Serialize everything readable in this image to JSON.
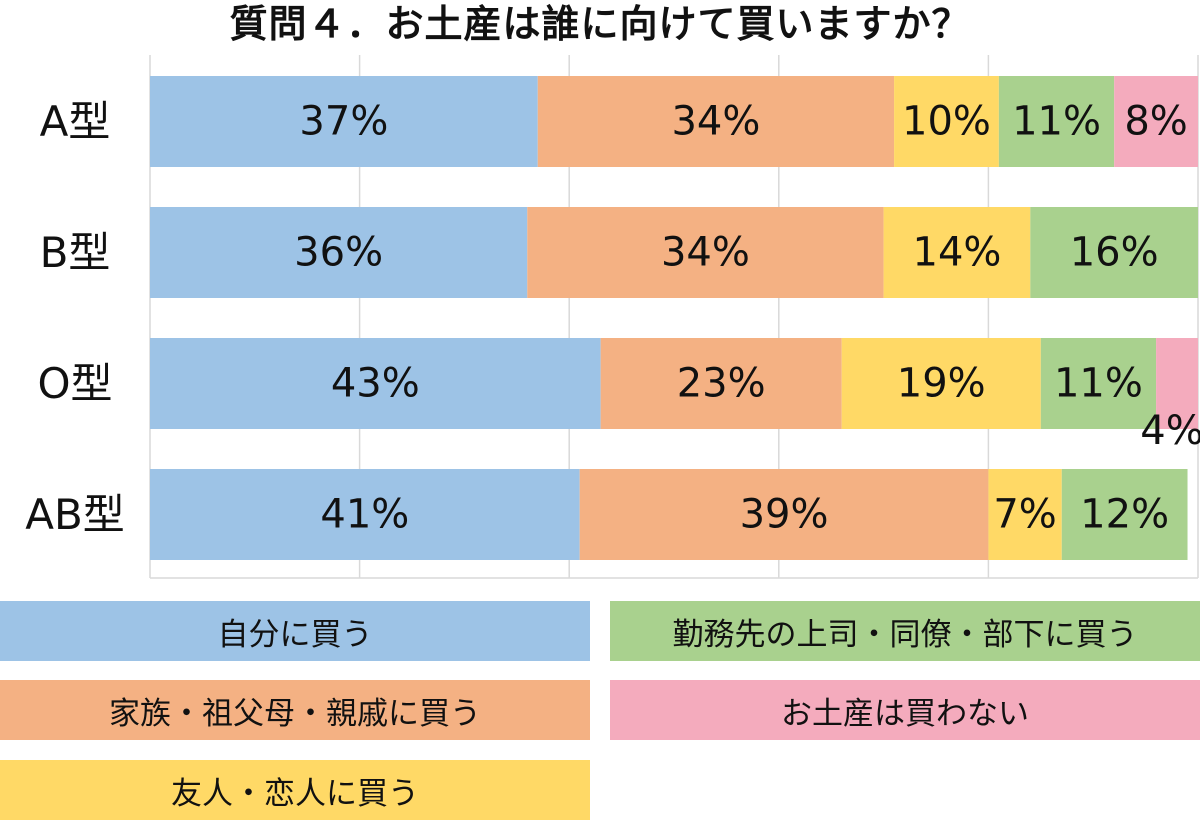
{
  "chart_data": {
    "type": "bar",
    "orientation": "horizontal",
    "stacked": true,
    "title": "質問４．お土産は誰に向けて買いますか？",
    "categories": [
      "A型",
      "B型",
      "O型",
      "AB型"
    ],
    "xlim": [
      0,
      100
    ],
    "grid": true,
    "legend_position": "bottom",
    "series": [
      {
        "name": "自分に買う",
        "color": "#9DC3E6",
        "values": [
          37,
          36,
          43,
          41
        ],
        "labels": [
          "37%",
          "36%",
          "43%",
          "41%"
        ]
      },
      {
        "name": "家族・祖父母・親戚に買う",
        "color": "#F4B183",
        "values": [
          34,
          34,
          23,
          39
        ],
        "labels": [
          "34%",
          "34%",
          "23%",
          "39%"
        ]
      },
      {
        "name": "友人・恋人に買う",
        "color": "#FFD966",
        "values": [
          10,
          14,
          19,
          7
        ],
        "labels": [
          "10%",
          "14%",
          "19%",
          "7%"
        ]
      },
      {
        "name": "勤務先の上司・同僚・部下に買う",
        "color": "#A9D18E",
        "values": [
          11,
          16,
          11,
          12
        ],
        "labels": [
          "11%",
          "16%",
          "11%",
          "12%"
        ]
      },
      {
        "name": "お土産は買わない",
        "color": "#F4ABBD",
        "values": [
          8,
          0,
          4,
          0
        ],
        "labels": [
          "8%",
          "",
          "4%",
          ""
        ]
      }
    ]
  }
}
